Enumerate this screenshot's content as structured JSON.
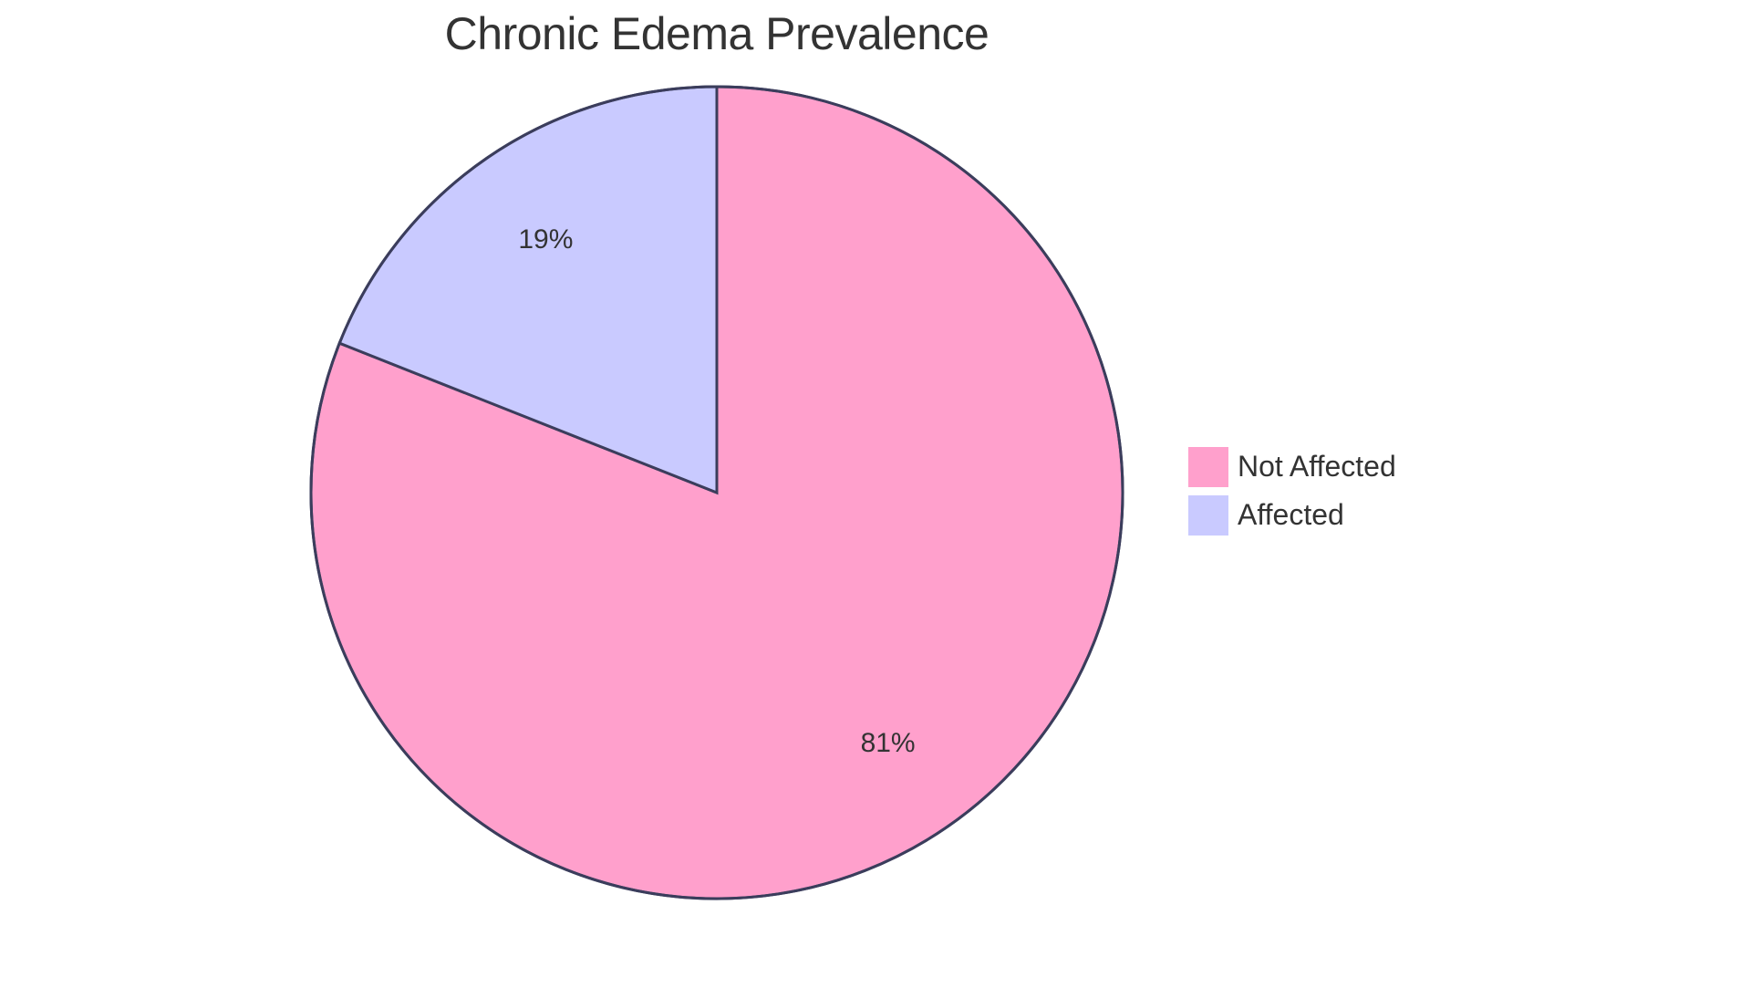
{
  "chart_data": {
    "type": "pie",
    "title": "Chronic Edema Prevalence",
    "categories": [
      "Not Affected",
      "Affected"
    ],
    "values": [
      81,
      19
    ],
    "labels": [
      "81%",
      "19%"
    ],
    "colors": [
      "#FFA0CC",
      "#C9CAFF"
    ],
    "stroke_color": "#3B3D5C",
    "legend_position": "right"
  },
  "legend": {
    "items": [
      {
        "label": "Not Affected",
        "color": "#FFA0CC"
      },
      {
        "label": "Affected",
        "color": "#C9CAFF"
      }
    ]
  }
}
